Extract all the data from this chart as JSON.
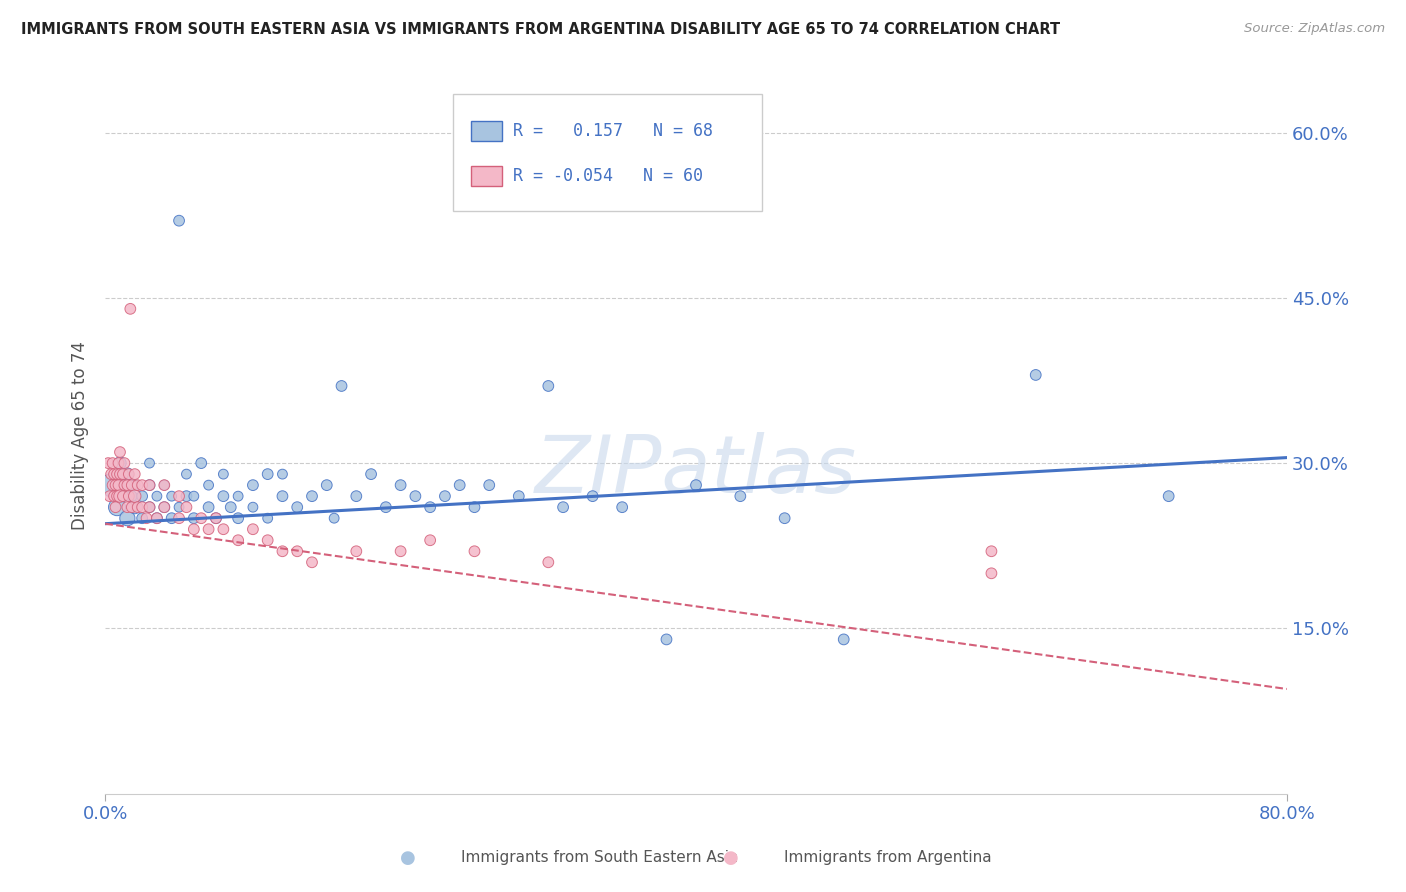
{
  "title": "IMMIGRANTS FROM SOUTH EASTERN ASIA VS IMMIGRANTS FROM ARGENTINA DISABILITY AGE 65 TO 74 CORRELATION CHART",
  "source": "Source: ZipAtlas.com",
  "ylabel_label": "Disability Age 65 to 74",
  "legend1_label": "Immigrants from South Eastern Asia",
  "legend2_label": "Immigrants from Argentina",
  "R1": 0.157,
  "N1": 68,
  "R2": -0.054,
  "N2": 60,
  "color_blue": "#a8c4e0",
  "color_pink": "#f4b8c8",
  "color_blue_line": "#4472C4",
  "color_pink_line": "#d4607a",
  "watermark": "ZIPatlas",
  "watermark_color": "#c8d8ec",
  "xlim": [
    0.0,
    0.8
  ],
  "ylim": [
    0.0,
    0.65
  ],
  "yticks": [
    0.15,
    0.3,
    0.45,
    0.6
  ],
  "ytick_labels": [
    "15.0%",
    "30.0%",
    "45.0%",
    "60.0%"
  ],
  "xtick_labels": [
    "0.0%",
    "80.0%"
  ],
  "blue_trend_x": [
    0.0,
    0.8
  ],
  "blue_trend_y": [
    0.245,
    0.305
  ],
  "pink_trend_x": [
    0.0,
    0.8
  ],
  "pink_trend_y": [
    0.245,
    0.095
  ],
  "blue_scatter_x": [
    0.005,
    0.008,
    0.01,
    0.012,
    0.015,
    0.015,
    0.018,
    0.02,
    0.02,
    0.025,
    0.025,
    0.03,
    0.03,
    0.03,
    0.035,
    0.035,
    0.04,
    0.04,
    0.045,
    0.045,
    0.05,
    0.05,
    0.055,
    0.055,
    0.06,
    0.06,
    0.065,
    0.07,
    0.07,
    0.075,
    0.08,
    0.08,
    0.085,
    0.09,
    0.09,
    0.1,
    0.1,
    0.11,
    0.11,
    0.12,
    0.12,
    0.13,
    0.14,
    0.15,
    0.155,
    0.16,
    0.17,
    0.18,
    0.19,
    0.2,
    0.21,
    0.22,
    0.23,
    0.24,
    0.25,
    0.26,
    0.28,
    0.3,
    0.31,
    0.33,
    0.35,
    0.38,
    0.4,
    0.43,
    0.46,
    0.5,
    0.63,
    0.72
  ],
  "blue_scatter_y": [
    0.28,
    0.26,
    0.3,
    0.27,
    0.25,
    0.29,
    0.27,
    0.26,
    0.28,
    0.25,
    0.27,
    0.26,
    0.28,
    0.3,
    0.25,
    0.27,
    0.26,
    0.28,
    0.25,
    0.27,
    0.52,
    0.26,
    0.27,
    0.29,
    0.25,
    0.27,
    0.3,
    0.26,
    0.28,
    0.25,
    0.27,
    0.29,
    0.26,
    0.25,
    0.27,
    0.28,
    0.26,
    0.29,
    0.25,
    0.27,
    0.29,
    0.26,
    0.27,
    0.28,
    0.25,
    0.37,
    0.27,
    0.29,
    0.26,
    0.28,
    0.27,
    0.26,
    0.27,
    0.28,
    0.26,
    0.28,
    0.27,
    0.37,
    0.26,
    0.27,
    0.26,
    0.14,
    0.28,
    0.27,
    0.25,
    0.14,
    0.38,
    0.27
  ],
  "blue_scatter_size": [
    300,
    150,
    80,
    60,
    120,
    80,
    60,
    90,
    60,
    60,
    60,
    60,
    60,
    50,
    60,
    50,
    60,
    50,
    60,
    50,
    60,
    50,
    60,
    50,
    60,
    50,
    60,
    60,
    50,
    60,
    60,
    50,
    60,
    60,
    50,
    60,
    50,
    60,
    50,
    60,
    50,
    60,
    60,
    60,
    50,
    60,
    60,
    60,
    60,
    60,
    60,
    60,
    60,
    60,
    60,
    60,
    60,
    60,
    60,
    60,
    60,
    60,
    60,
    60,
    60,
    60,
    60,
    60
  ],
  "pink_scatter_x": [
    0.002,
    0.003,
    0.004,
    0.005,
    0.005,
    0.006,
    0.006,
    0.007,
    0.007,
    0.008,
    0.008,
    0.009,
    0.009,
    0.01,
    0.01,
    0.01,
    0.012,
    0.012,
    0.013,
    0.013,
    0.015,
    0.015,
    0.016,
    0.016,
    0.017,
    0.018,
    0.018,
    0.02,
    0.02,
    0.022,
    0.022,
    0.025,
    0.025,
    0.028,
    0.03,
    0.03,
    0.035,
    0.04,
    0.04,
    0.05,
    0.05,
    0.055,
    0.06,
    0.065,
    0.07,
    0.075,
    0.08,
    0.09,
    0.1,
    0.11,
    0.12,
    0.13,
    0.14,
    0.17,
    0.2,
    0.22,
    0.25,
    0.3,
    0.6,
    0.6
  ],
  "pink_scatter_y": [
    0.3,
    0.27,
    0.29,
    0.28,
    0.3,
    0.27,
    0.29,
    0.26,
    0.28,
    0.27,
    0.29,
    0.28,
    0.3,
    0.27,
    0.29,
    0.31,
    0.27,
    0.29,
    0.28,
    0.3,
    0.26,
    0.28,
    0.27,
    0.29,
    0.44,
    0.26,
    0.28,
    0.27,
    0.29,
    0.26,
    0.28,
    0.26,
    0.28,
    0.25,
    0.26,
    0.28,
    0.25,
    0.26,
    0.28,
    0.25,
    0.27,
    0.26,
    0.24,
    0.25,
    0.24,
    0.25,
    0.24,
    0.23,
    0.24,
    0.23,
    0.22,
    0.22,
    0.21,
    0.22,
    0.22,
    0.23,
    0.22,
    0.21,
    0.2,
    0.22
  ],
  "pink_scatter_size": [
    60,
    60,
    60,
    60,
    60,
    60,
    60,
    60,
    60,
    60,
    60,
    60,
    60,
    80,
    60,
    60,
    60,
    60,
    60,
    60,
    60,
    60,
    60,
    60,
    60,
    60,
    60,
    80,
    60,
    60,
    60,
    60,
    60,
    60,
    60,
    60,
    60,
    60,
    60,
    60,
    60,
    60,
    60,
    60,
    60,
    60,
    60,
    60,
    60,
    60,
    60,
    60,
    60,
    60,
    60,
    60,
    60,
    60,
    60,
    60
  ]
}
